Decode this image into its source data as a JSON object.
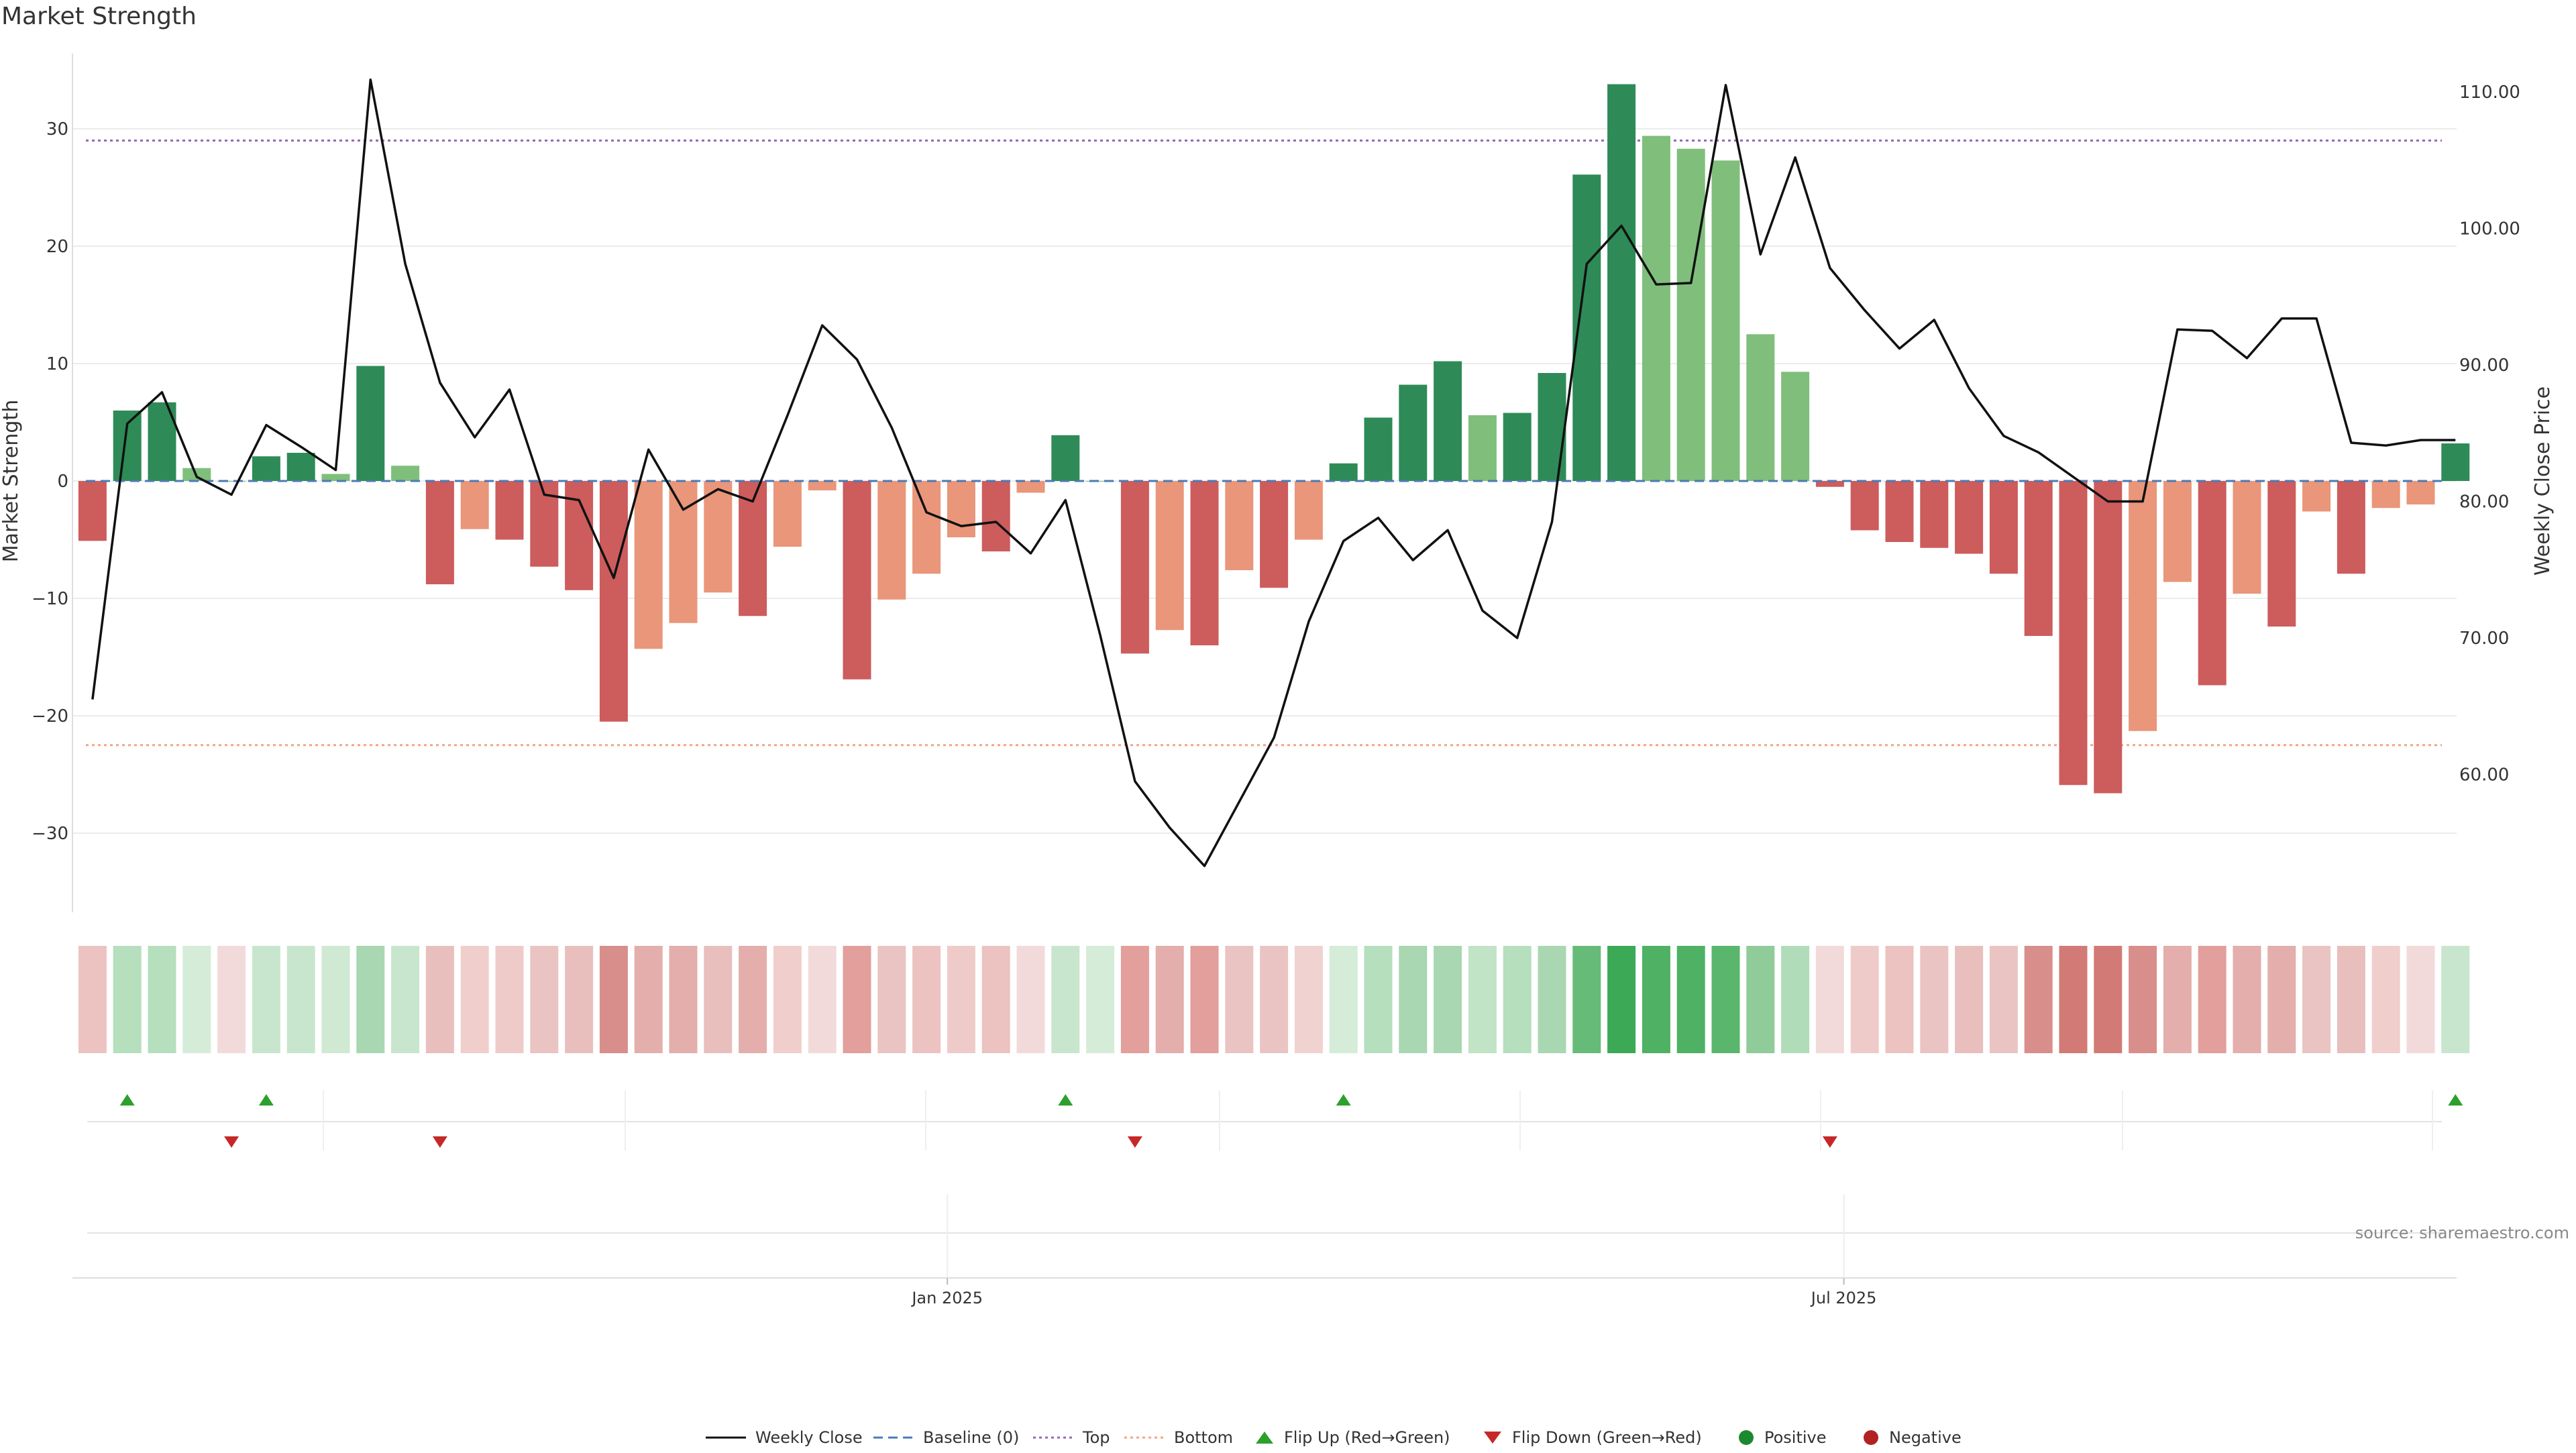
{
  "title": "Market Strength",
  "source": "source: sharemaestro.com",
  "colors": {
    "pos_strong": "#2e8b57",
    "pos_weak": "#7fbf7b",
    "neg_strong": "#cd5c5c",
    "neg_weak": "#e9967a",
    "line": "#111111",
    "baseline": "#4a7bb7",
    "top": "#9467bd",
    "bottom": "#f4a582",
    "flip_up": "#2ca02c",
    "flip_down": "#c62828",
    "positive": "#1b8a2f",
    "negative": "#b22222"
  },
  "chart_data": {
    "type": "bar",
    "title": "Market Strength",
    "ylabel": "Market Strength",
    "y2label": "Weekly Close Price",
    "ylim": [
      -36.5,
      36.5
    ],
    "y2lim": [
      51,
      114
    ],
    "yticks": [
      "30",
      "20",
      "10",
      "0",
      "−10",
      "−20",
      "−30"
    ],
    "y2ticks": [
      "110.00",
      "100.00",
      "90.00",
      "80.00",
      "70.00",
      "60.00"
    ],
    "xtick_labels": [
      "Jan 2025",
      "Jul 2025"
    ],
    "xtick_index": [
      24.6,
      50.4
    ],
    "top_line": 29,
    "bottom_line": -22.5,
    "grid": true,
    "strength": [
      -5.1,
      6,
      6.7,
      1.1,
      0,
      2.1,
      2.4,
      0.6,
      9.8,
      1.3,
      -8.8,
      -4.1,
      -5,
      -7.3,
      -9.3,
      -20.5,
      -14.3,
      -12.1,
      -9.5,
      -11.5,
      -5.6,
      -0.8,
      -16.9,
      -10.1,
      -7.9,
      -4.8,
      -6,
      -1,
      3.9,
      0,
      -14.7,
      -12.7,
      -14,
      -7.6,
      -9.1,
      -5,
      1.5,
      5.4,
      8.2,
      10.2,
      5.6,
      5.8,
      9.2,
      26.1,
      33.8,
      29.4,
      28.3,
      27.3,
      12.5,
      9.3,
      -0.5,
      -4.2,
      -5.2,
      -5.7,
      -6.2,
      -7.9,
      -13.2,
      -25.9,
      -26.6,
      -21.3,
      -8.6,
      -17.4,
      -9.6,
      -12.4,
      -2.6,
      -7.9,
      -2.3,
      -2,
      3.2
    ],
    "weekly_close": [
      65.5,
      85.7,
      88,
      81.8,
      80.5,
      85.6,
      84,
      82.3,
      110.9,
      97.4,
      88.7,
      84.7,
      88.2,
      80.5,
      80.1,
      74.4,
      83.8,
      79.4,
      80.9,
      80,
      86.3,
      92.9,
      90.4,
      85.4,
      79.2,
      78.2,
      78.5,
      76.2,
      80.1,
      70.2,
      59.5,
      56.1,
      53.3,
      58,
      62.7,
      71.2,
      77.1,
      78.8,
      75.7,
      77.9,
      72,
      70,
      78.5,
      97.4,
      100.2,
      95.9,
      96,
      110.5,
      98.1,
      105.2,
      97.1,
      94,
      91.2,
      93.3,
      88.3,
      84.8,
      83.6,
      81.8,
      80,
      80,
      92.6,
      92.5,
      90.5,
      93.4,
      93.4,
      84.3,
      84.1,
      84.5,
      84.5
    ],
    "bar_shade": [
      "neg_strong",
      "pos_strong",
      "pos_strong",
      "pos_weak",
      "pos_weak",
      "pos_strong",
      "pos_strong",
      "pos_weak",
      "pos_strong",
      "pos_weak",
      "neg_strong",
      "neg_weak",
      "neg_strong",
      "neg_strong",
      "neg_strong",
      "neg_strong",
      "neg_weak",
      "neg_weak",
      "neg_weak",
      "neg_strong",
      "neg_weak",
      "neg_weak",
      "neg_strong",
      "neg_weak",
      "neg_weak",
      "neg_weak",
      "neg_strong",
      "neg_weak",
      "pos_strong",
      "pos_weak",
      "neg_strong",
      "neg_weak",
      "neg_strong",
      "neg_weak",
      "neg_strong",
      "neg_weak",
      "pos_strong",
      "pos_strong",
      "pos_strong",
      "pos_strong",
      "pos_weak",
      "pos_strong",
      "pos_strong",
      "pos_strong",
      "pos_strong",
      "pos_weak",
      "pos_weak",
      "pos_weak",
      "pos_weak",
      "pos_weak",
      "neg_strong",
      "neg_strong",
      "neg_strong",
      "neg_strong",
      "neg_strong",
      "neg_strong",
      "neg_strong",
      "neg_strong",
      "neg_strong",
      "neg_weak",
      "neg_weak",
      "neg_strong",
      "neg_weak",
      "neg_strong",
      "neg_weak",
      "neg_strong",
      "neg_weak",
      "neg_weak",
      "pos_strong"
    ],
    "heat_colors": [
      "#ecc3c1",
      "#b5dfbd",
      "#b5dfbd",
      "#d4ecd8",
      "#f3dada",
      "#c8e6cd",
      "#c8e6cd",
      "#cfe9d3",
      "#a8d7b1",
      "#c8e6cd",
      "#e8bfbd",
      "#f0cecc",
      "#eecbc9",
      "#eac4c2",
      "#e8bfbd",
      "#d88e8a",
      "#e3aeab",
      "#e3aeab",
      "#e8bfbd",
      "#e3aeab",
      "#f0cecc",
      "#f3dada",
      "#e29f9c",
      "#eac4c2",
      "#ecc3c1",
      "#eecbc9",
      "#ecc3c1",
      "#f3dada",
      "#c8e6cd",
      "#d4ecd8",
      "#e29f9c",
      "#e3aeab",
      "#e29f9c",
      "#eac4c2",
      "#eac4c2",
      "#f0d2d0",
      "#d4ecd8",
      "#b5dfbd",
      "#a8d7b1",
      "#a8d7b1",
      "#c1e3c6",
      "#b5dfbd",
      "#a8d7b1",
      "#67bb78",
      "#3ca956",
      "#4fb163",
      "#4fb163",
      "#5ab66c",
      "#90cb9a",
      "#b1dcb9",
      "#f3dada",
      "#eecbc9",
      "#ecc3c1",
      "#eac4c2",
      "#e8bfbd",
      "#eac4c2",
      "#d88e8a",
      "#d27a75",
      "#d27a75",
      "#d88e8a",
      "#e3aeab",
      "#e29f9c",
      "#e3aeab",
      "#e3aeab",
      "#eac4c2",
      "#e8bfbd",
      "#f0cecc",
      "#f3dada",
      "#c8e6cd"
    ],
    "flip_up_index": [
      1,
      5,
      28,
      36,
      68
    ],
    "flip_down_index": [
      4,
      10,
      30,
      50
    ],
    "legend": [
      "Weekly Close",
      "Baseline (0)",
      "Top",
      "Bottom",
      "Flip Up (Red→Green)",
      "Flip Down (Green→Red)",
      "Positive",
      "Negative"
    ]
  }
}
